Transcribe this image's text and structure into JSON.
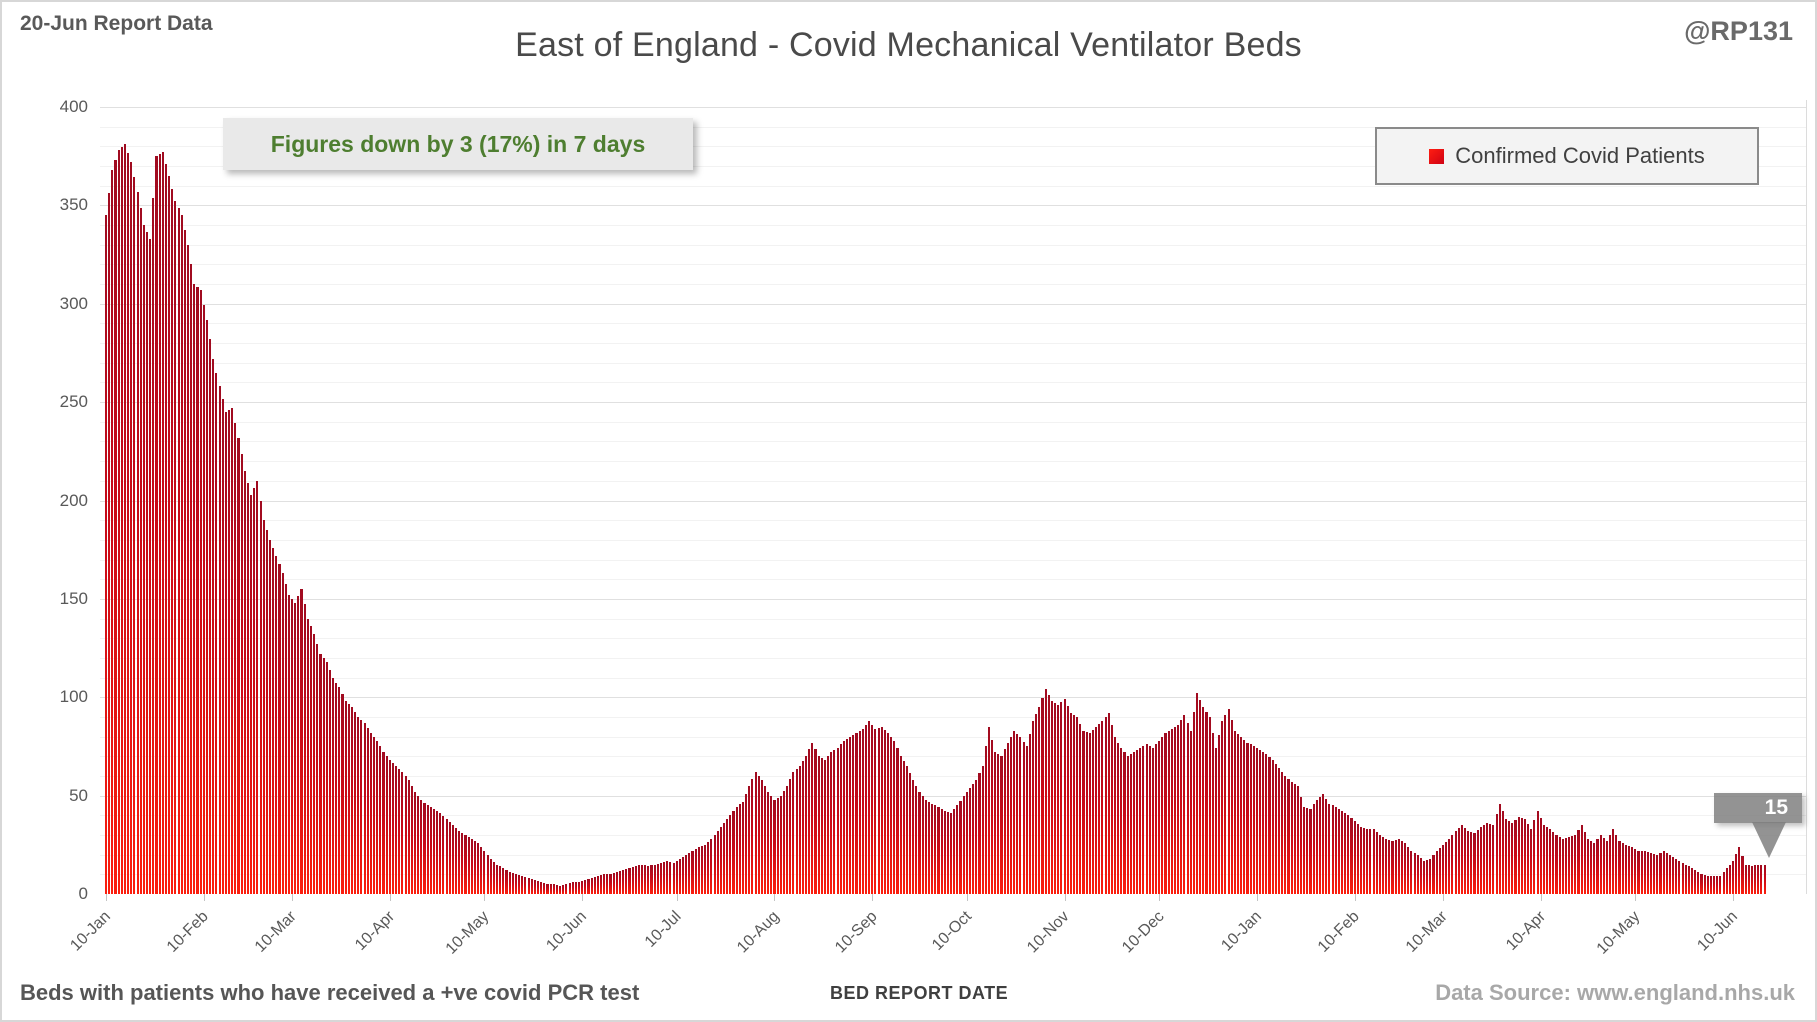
{
  "header": {
    "report_label": "20-Jun Report Data",
    "title": "East of England - Covid Mechanical Ventilator Beds",
    "watermark": "@RP131"
  },
  "annotation": {
    "text": "Figures down by 3 (17%) in 7 days",
    "text_color": "#4e7e30"
  },
  "legend": {
    "label": "Confirmed Covid Patients",
    "marker_color": "#ee0f0f",
    "position": "top-right"
  },
  "callout": {
    "value": "15"
  },
  "footer": {
    "left_note": "Beds with patients who have received a +ve covid PCR test",
    "axis_title": "BED REPORT DATE",
    "data_source": "Data Source: www.england.nhs.uk"
  },
  "colors": {
    "bar_gradient_top": "#a00b20",
    "bar_gradient_bottom": "#fb1e0e",
    "annotation_green": "#4e7e30",
    "gridline_minor": "#f2f2f2",
    "gridline_major": "#e0e0e0",
    "text_gray": "#595959"
  },
  "chart_data": {
    "type": "bar",
    "title": "East of England - Covid Mechanical Ventilator Beds",
    "series_name": "Confirmed Covid Patients",
    "xlabel": "BED REPORT DATE",
    "ylabel": "",
    "ylim": [
      0,
      400
    ],
    "y_major_step": 50,
    "y_minor_step": 10,
    "grid": "horizontal",
    "legend_position": "top-right",
    "start_date": "2021-01-10",
    "end_date": "2022-06-20",
    "sampling_note": "values estimated from chart at 2-day intervals; bars are daily",
    "step_days": 2,
    "x_tick_labels": [
      "10-Jan",
      "10-Feb",
      "10-Mar",
      "10-Apr",
      "10-May",
      "10-Jun",
      "10-Jul",
      "10-Aug",
      "10-Sep",
      "10-Oct",
      "10-Nov",
      "10-Dec",
      "10-Jan",
      "10-Feb",
      "10-Mar",
      "10-Apr",
      "10-May",
      "10-Jun"
    ],
    "x_tick_day_offsets": [
      0,
      31,
      59,
      90,
      120,
      151,
      181,
      212,
      243,
      273,
      304,
      334,
      365,
      396,
      424,
      455,
      485,
      516
    ],
    "last_point": {
      "date": "2022-06-20",
      "value": 15
    },
    "values": [
      345,
      368,
      378,
      381,
      372,
      357,
      340,
      333,
      375,
      377,
      365,
      352,
      345,
      330,
      310,
      307,
      292,
      272,
      258,
      245,
      247,
      232,
      215,
      203,
      210,
      190,
      180,
      172,
      163,
      152,
      148,
      155,
      140,
      132,
      122,
      118,
      110,
      105,
      98,
      95,
      90,
      87,
      82,
      78,
      72,
      68,
      65,
      62,
      58,
      52,
      48,
      45,
      43,
      41,
      38,
      35,
      32,
      30,
      28,
      26,
      22,
      18,
      15,
      13,
      11,
      10,
      9,
      8,
      7,
      6,
      5,
      5,
      4,
      5,
      6,
      6,
      7,
      8,
      9,
      10,
      10,
      11,
      12,
      13,
      14,
      15,
      14,
      15,
      16,
      17,
      16,
      18,
      20,
      22,
      24,
      25,
      28,
      32,
      36,
      40,
      44,
      47,
      55,
      62,
      58,
      52,
      48,
      50,
      55,
      62,
      65,
      70,
      77,
      70,
      68,
      72,
      74,
      78,
      80,
      82,
      84,
      88,
      84,
      85,
      82,
      78,
      70,
      65,
      58,
      52,
      48,
      46,
      44,
      42,
      41,
      45,
      50,
      54,
      58,
      65,
      85,
      72,
      70,
      77,
      83,
      80,
      75,
      88,
      95,
      104,
      98,
      96,
      99,
      92,
      90,
      83,
      82,
      85,
      88,
      92,
      80,
      74,
      70,
      72,
      74,
      76,
      74,
      78,
      82,
      84,
      86,
      91,
      83,
      102,
      95,
      90,
      74,
      88,
      94,
      83,
      80,
      77,
      75,
      73,
      71,
      68,
      64,
      60,
      57,
      55,
      44,
      43,
      48,
      51,
      46,
      44,
      42,
      40,
      37,
      34,
      33,
      33,
      30,
      28,
      27,
      28,
      26,
      22,
      20,
      17,
      18,
      22,
      25,
      28,
      32,
      35,
      32,
      31,
      34,
      36,
      35,
      46,
      38,
      36,
      39,
      38,
      33,
      42,
      35,
      33,
      30,
      28,
      29,
      30,
      35,
      28,
      26,
      30,
      27,
      33,
      27,
      25,
      24,
      22,
      22,
      21,
      20,
      22,
      20,
      18,
      16,
      14,
      12,
      10,
      9,
      9,
      9,
      13,
      17,
      24,
      15,
      14,
      15,
      15
    ]
  }
}
